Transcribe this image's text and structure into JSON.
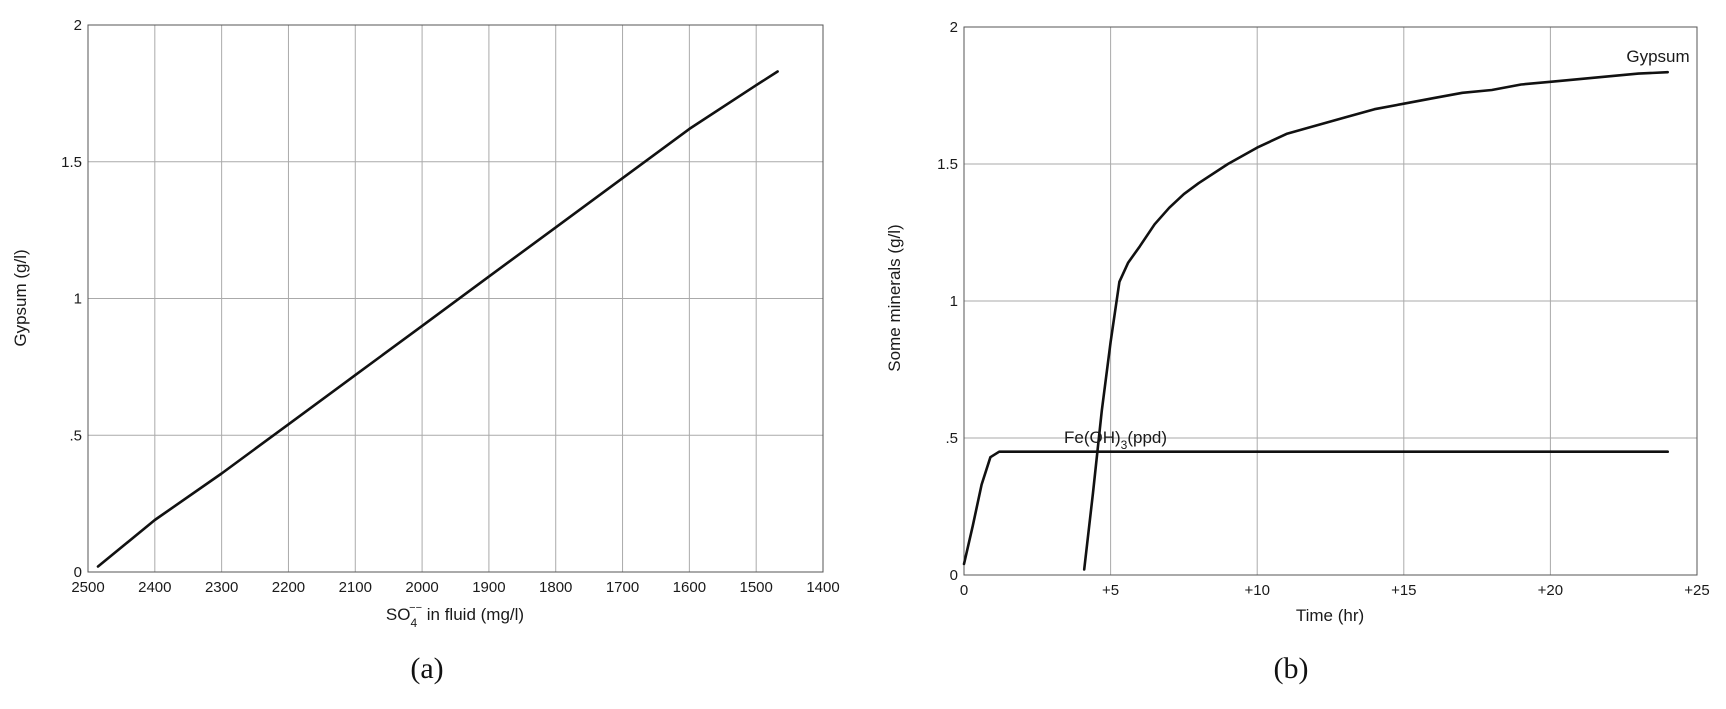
{
  "chart_data": [
    {
      "id": "a",
      "type": "line",
      "panel_label": "(a)",
      "xlabel_main": "SO",
      "xlabel_sub": "4",
      "xlabel_sup": "−−",
      "xlabel_rest": " in fluid (mg/l)",
      "ylabel": "Gypsum (g/l)",
      "xlim": [
        2500,
        1400
      ],
      "ylim": [
        0,
        2
      ],
      "x_reversed": true,
      "xticks": [
        2500,
        2400,
        2300,
        2200,
        2100,
        2000,
        1900,
        1800,
        1700,
        1600,
        1500,
        1400
      ],
      "xtick_labels": [
        "2500",
        "2400",
        "2300",
        "2200",
        "2100",
        "2000",
        "1900",
        "1800",
        "1700",
        "1600",
        "1500",
        "1400"
      ],
      "yticks": [
        0,
        0.5,
        1,
        1.5,
        2
      ],
      "ytick_labels": [
        "0",
        ".5",
        "1",
        "1.5",
        "2"
      ],
      "grid": true,
      "series": [
        {
          "x": [
            2485,
            2400,
            2300,
            2200,
            2100,
            2000,
            1900,
            1800,
            1700,
            1600,
            1500,
            1468
          ],
          "y": [
            0.02,
            0.19,
            0.36,
            0.54,
            0.72,
            0.9,
            1.08,
            1.26,
            1.44,
            1.62,
            1.78,
            1.83
          ]
        }
      ]
    },
    {
      "id": "b",
      "type": "line",
      "panel_label": "(b)",
      "xlabel": "Time (hr)",
      "ylabel": "Some minerals (g/l)",
      "xlim": [
        0,
        25
      ],
      "ylim": [
        0,
        2
      ],
      "xticks": [
        0,
        5,
        10,
        15,
        20,
        25
      ],
      "xtick_labels": [
        "0",
        "+5",
        "+10",
        "+15",
        "+20",
        "+25"
      ],
      "yticks": [
        0,
        0.5,
        1,
        1.5,
        2
      ],
      "ytick_labels": [
        "0",
        ".5",
        "1",
        "1.5",
        "2"
      ],
      "grid": true,
      "series": [
        {
          "label": "Gypsum",
          "x": [
            4.1,
            4.4,
            4.7,
            5.0,
            5.3,
            5.6,
            6.0,
            6.5,
            7.0,
            7.5,
            8.0,
            9.0,
            10.0,
            11.0,
            12.0,
            13.0,
            14.0,
            15.0,
            16.0,
            17.0,
            18.0,
            19.0,
            20.0,
            21.0,
            22.0,
            23.0,
            24.0
          ],
          "y": [
            0.02,
            0.3,
            0.6,
            0.85,
            1.07,
            1.14,
            1.2,
            1.28,
            1.34,
            1.39,
            1.43,
            1.5,
            1.56,
            1.61,
            1.64,
            1.67,
            1.7,
            1.72,
            1.74,
            1.76,
            1.77,
            1.79,
            1.8,
            1.81,
            1.82,
            1.83,
            1.835
          ]
        },
        {
          "label": "Fe(OH)",
          "label_sub": "3",
          "label_rest": "(ppd)",
          "x": [
            0,
            0.3,
            0.6,
            0.9,
            1.2,
            2,
            5,
            10,
            15,
            20,
            24
          ],
          "y": [
            0.04,
            0.18,
            0.33,
            0.43,
            0.45,
            0.45,
            0.45,
            0.45,
            0.45,
            0.45,
            0.45
          ]
        }
      ]
    }
  ]
}
